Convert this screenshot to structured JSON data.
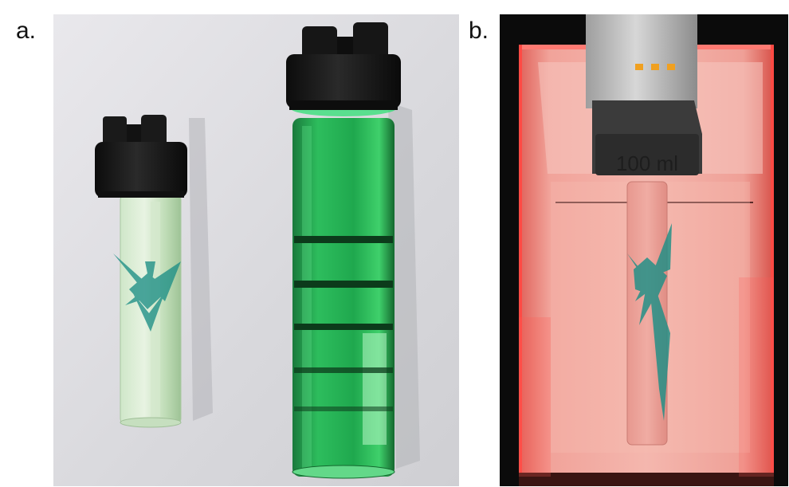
{
  "panels": [
    {
      "label": "a."
    },
    {
      "label": "b.",
      "beaker_marking": "100 ml"
    }
  ],
  "colors": {
    "gel_green": "#1fa84e",
    "dye_teal": "#1d8f86",
    "cap_black": "#151515",
    "backdrop_white": "#dcdcde",
    "beaker_pink": "#f2a6a0",
    "laser_red": "#ff3b3b"
  }
}
